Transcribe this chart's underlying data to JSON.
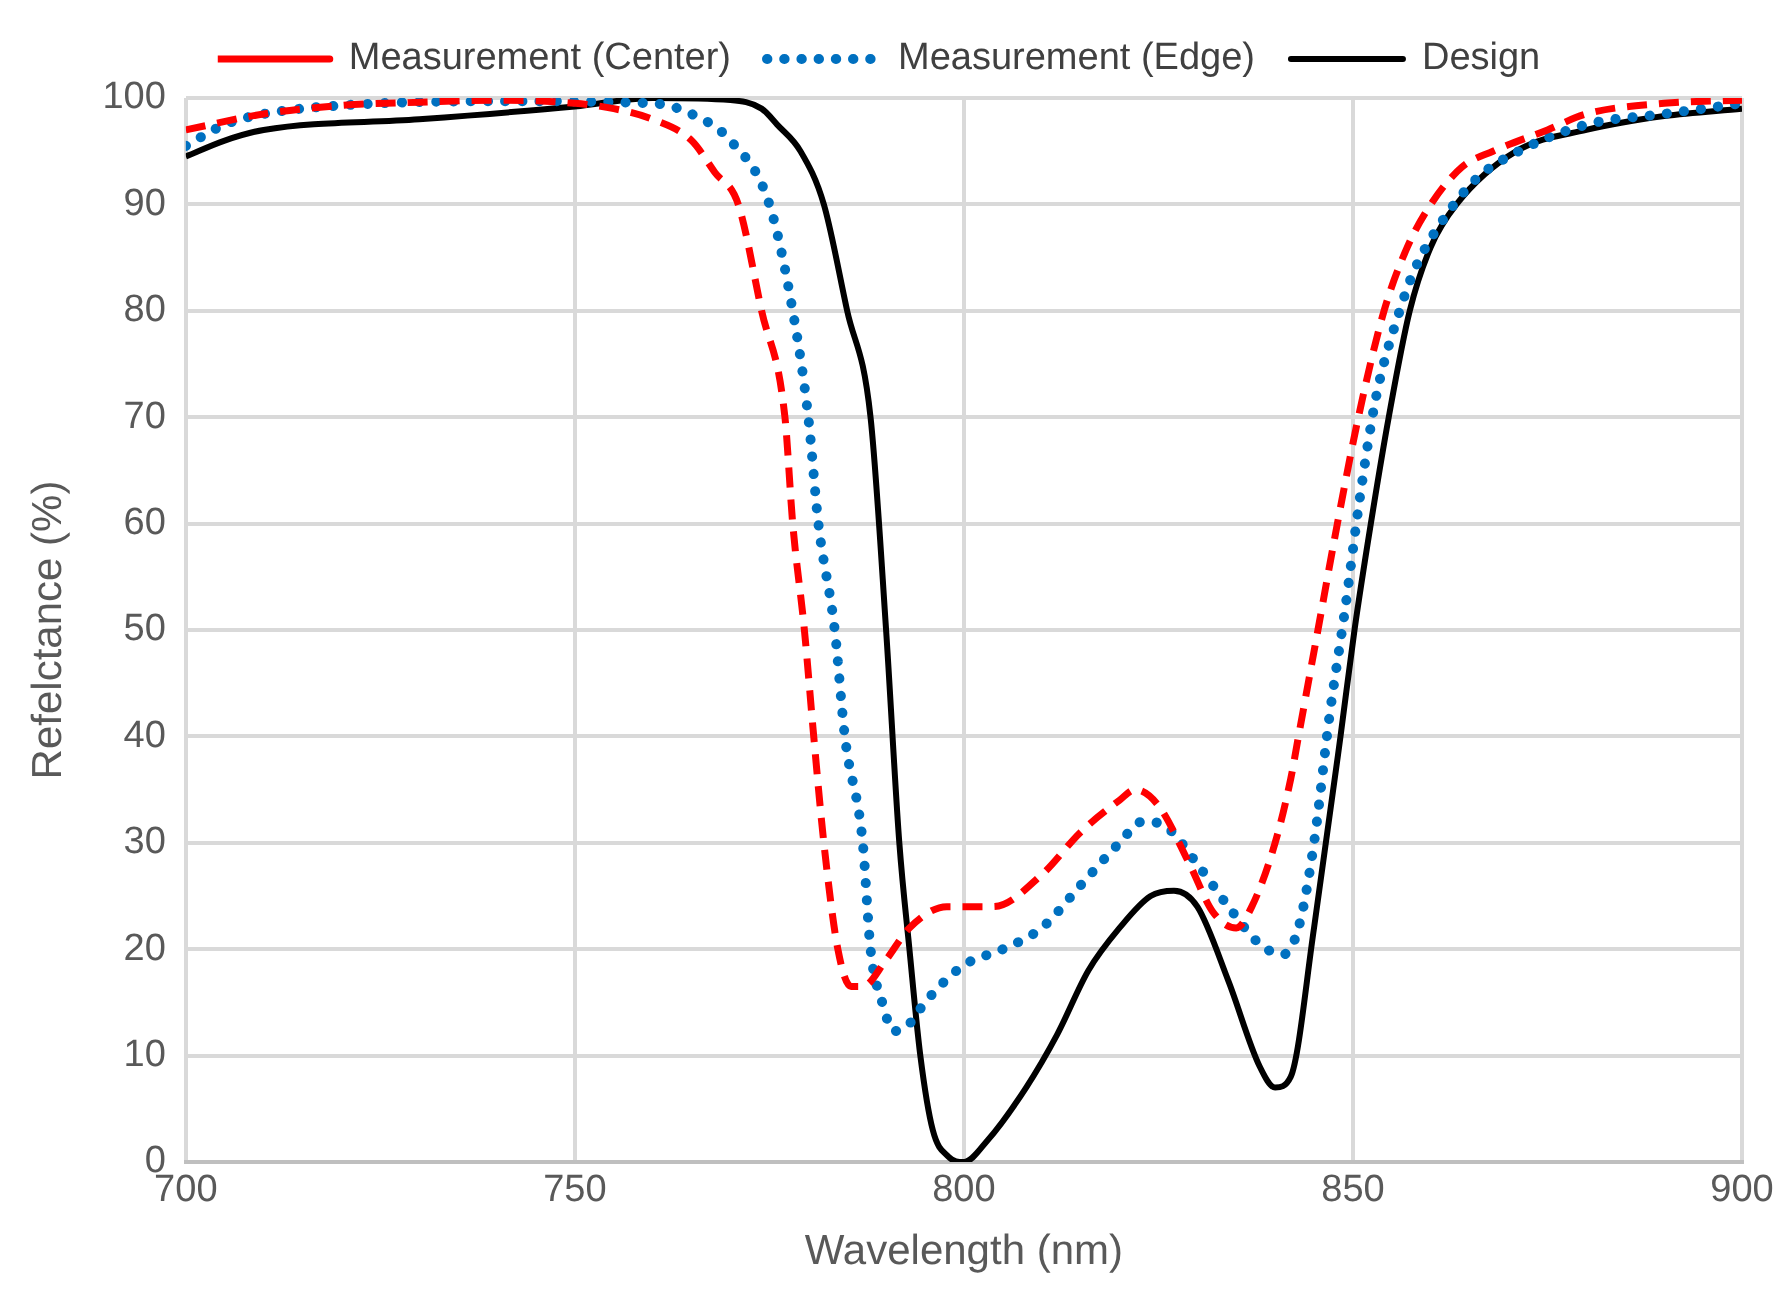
{
  "chart_data": {
    "type": "line",
    "xlabel": "Wavelength (nm)",
    "ylabel": "Refelctance (%)",
    "xlim": [
      700,
      900
    ],
    "xticks": [
      700,
      750,
      800,
      850,
      900
    ],
    "ylim": [
      0,
      100
    ],
    "yticks": [
      0,
      10,
      20,
      30,
      40,
      50,
      60,
      70,
      80,
      90,
      100
    ],
    "grid": true,
    "legend": "top",
    "marker": "none",
    "series": [
      {
        "name": "Measurement (Center)",
        "color": "#ff0000",
        "line_style": "dashed",
        "x": [
          700,
          710,
          720,
          730,
          740,
          750,
          755,
          760,
          765,
          768,
          771,
          774,
          777,
          778,
          779.5,
          780.7,
          782,
          783.8,
          785.5,
          787,
          790,
          793,
          797.8,
          800,
          803.8,
          810,
          815,
          820,
          822,
          825,
          829,
          832,
          835,
          837,
          840,
          842,
          843,
          845.5,
          848,
          850.7,
          854,
          857,
          860,
          864,
          868,
          875,
          880,
          890,
          900
        ],
        "values": [
          97,
          98.5,
          99.3,
          99.6,
          99.8,
          99.5,
          99,
          98,
          96,
          93,
          90,
          80,
          70,
          60,
          50,
          40,
          30,
          20,
          16.5,
          16.5,
          19,
          22,
          24,
          24,
          24,
          27,
          31,
          34,
          35,
          33.5,
          28,
          23.5,
          22,
          24,
          30,
          36,
          40,
          50,
          60,
          70,
          80,
          86,
          90,
          93.5,
          95,
          97,
          98.5,
          99.5,
          99.8
        ]
      },
      {
        "name": "Measurement (Edge)",
        "color": "#0070c0",
        "line_style": "dotted",
        "x": [
          700,
          705,
          710,
          720,
          740,
          760,
          765,
          770,
          775,
          778,
          780,
          781.3,
          783.4,
          784.7,
          787,
          788,
          789.5,
          791,
          793,
          795,
          800,
          805,
          810,
          815,
          820,
          823,
          826,
          830,
          834,
          838,
          841,
          843,
          845,
          847,
          849,
          851,
          853,
          856,
          858,
          862,
          866,
          870,
          880,
          890,
          900
        ],
        "values": [
          95.5,
          97.5,
          98.5,
          99.3,
          99.7,
          99.5,
          98.5,
          96,
          90,
          80,
          70,
          60,
          50,
          40,
          30,
          20,
          15,
          12.3,
          13,
          15,
          18.5,
          20,
          22,
          26,
          30,
          32,
          31.5,
          28,
          24,
          20.5,
          19.5,
          22,
          30,
          42,
          52,
          63,
          72,
          80,
          84,
          89,
          92.5,
          94.5,
          97.5,
          98.5,
          99.5
        ]
      },
      {
        "name": "Design",
        "color": "#000000",
        "line_style": "solid",
        "x": [
          700,
          705,
          710,
          730,
          750,
          760,
          770,
          774,
          776,
          779,
          782,
          785,
          788,
          790,
          791.7,
          793,
          794.4,
          796,
          798,
          800,
          803,
          808,
          812,
          816,
          820,
          824,
          827,
          830,
          834,
          838,
          840,
          842,
          845,
          848.4,
          850.2,
          852.3,
          854.6,
          857.3,
          860,
          863.3,
          871,
          880,
          890,
          900
        ],
        "values": [
          94.5,
          96,
          97,
          98,
          99.2,
          100,
          99.8,
          99,
          97.5,
          95,
          90,
          80,
          70,
          50,
          30,
          20,
          10,
          3,
          0.5,
          0,
          2,
          7,
          12,
          18,
          22,
          25,
          25.5,
          24,
          17,
          9,
          7,
          8,
          22,
          40,
          50,
          60,
          70,
          80,
          86,
          90,
          95,
          97,
          98.3,
          99
        ]
      }
    ]
  }
}
